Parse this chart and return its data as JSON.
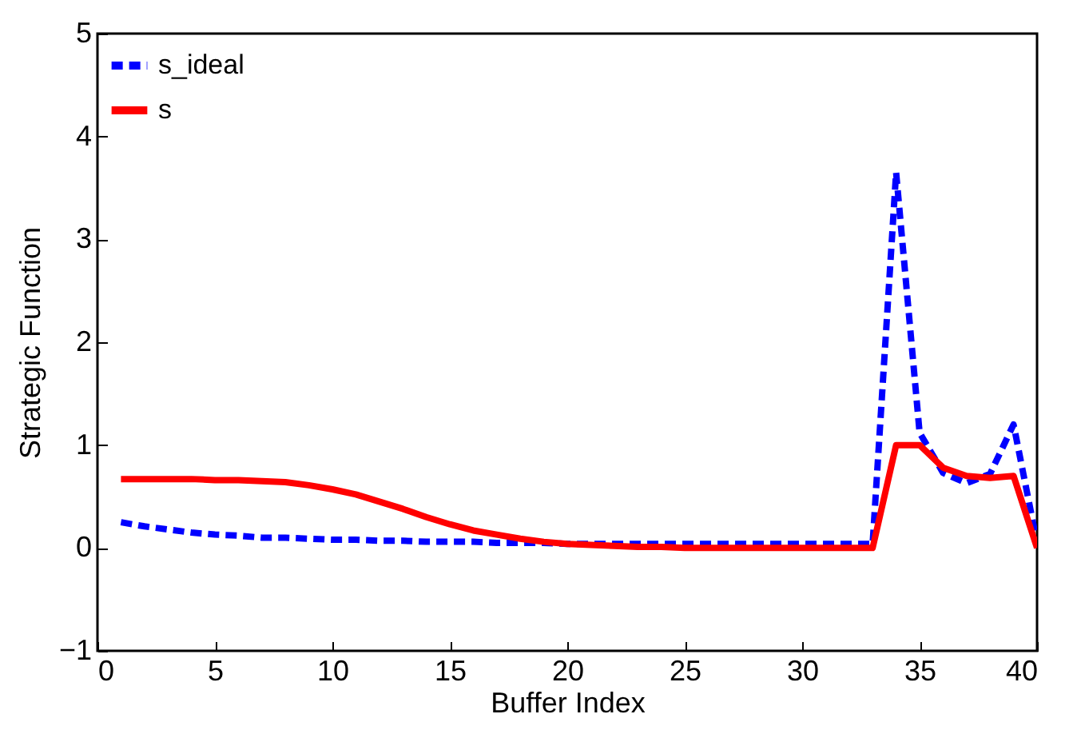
{
  "chart_data": {
    "type": "line",
    "xlabel": "Buffer Index",
    "ylabel": "Strategic Function",
    "x": [
      1,
      2,
      3,
      4,
      5,
      6,
      7,
      8,
      9,
      10,
      11,
      12,
      13,
      14,
      15,
      16,
      17,
      18,
      19,
      20,
      21,
      22,
      23,
      24,
      25,
      26,
      27,
      28,
      29,
      30,
      31,
      32,
      33,
      34,
      35,
      36,
      37,
      38,
      39,
      40
    ],
    "series": [
      {
        "name": "s_ideal",
        "color": "#0000ff",
        "line_style": "dashed",
        "values": [
          0.25,
          0.21,
          0.18,
          0.15,
          0.13,
          0.12,
          0.1,
          0.1,
          0.09,
          0.08,
          0.08,
          0.07,
          0.07,
          0.06,
          0.06,
          0.06,
          0.05,
          0.05,
          0.05,
          0.04,
          0.04,
          0.04,
          0.04,
          0.04,
          0.04,
          0.04,
          0.04,
          0.04,
          0.04,
          0.04,
          0.04,
          0.04,
          0.04,
          3.65,
          1.12,
          0.73,
          0.63,
          0.72,
          1.2,
          0.05
        ]
      },
      {
        "name": "s",
        "color": "#ff0000",
        "line_style": "solid",
        "values": [
          0.67,
          0.67,
          0.67,
          0.67,
          0.66,
          0.66,
          0.65,
          0.64,
          0.61,
          0.57,
          0.52,
          0.45,
          0.38,
          0.3,
          0.23,
          0.17,
          0.13,
          0.09,
          0.06,
          0.04,
          0.03,
          0.02,
          0.01,
          0.01,
          0.0,
          0.0,
          0.0,
          0.0,
          0.0,
          0.0,
          0.0,
          0.0,
          0.0,
          1.0,
          1.0,
          0.78,
          0.7,
          0.68,
          0.7,
          0.0
        ]
      }
    ],
    "xlim": [
      0,
      40
    ],
    "xticks": [
      0,
      5,
      10,
      15,
      20,
      25,
      30,
      35,
      40
    ],
    "ylim": [
      -1,
      5
    ],
    "yticks": [
      -1,
      0,
      1,
      2,
      3,
      4,
      5
    ],
    "grid": false,
    "legend": "top left"
  }
}
